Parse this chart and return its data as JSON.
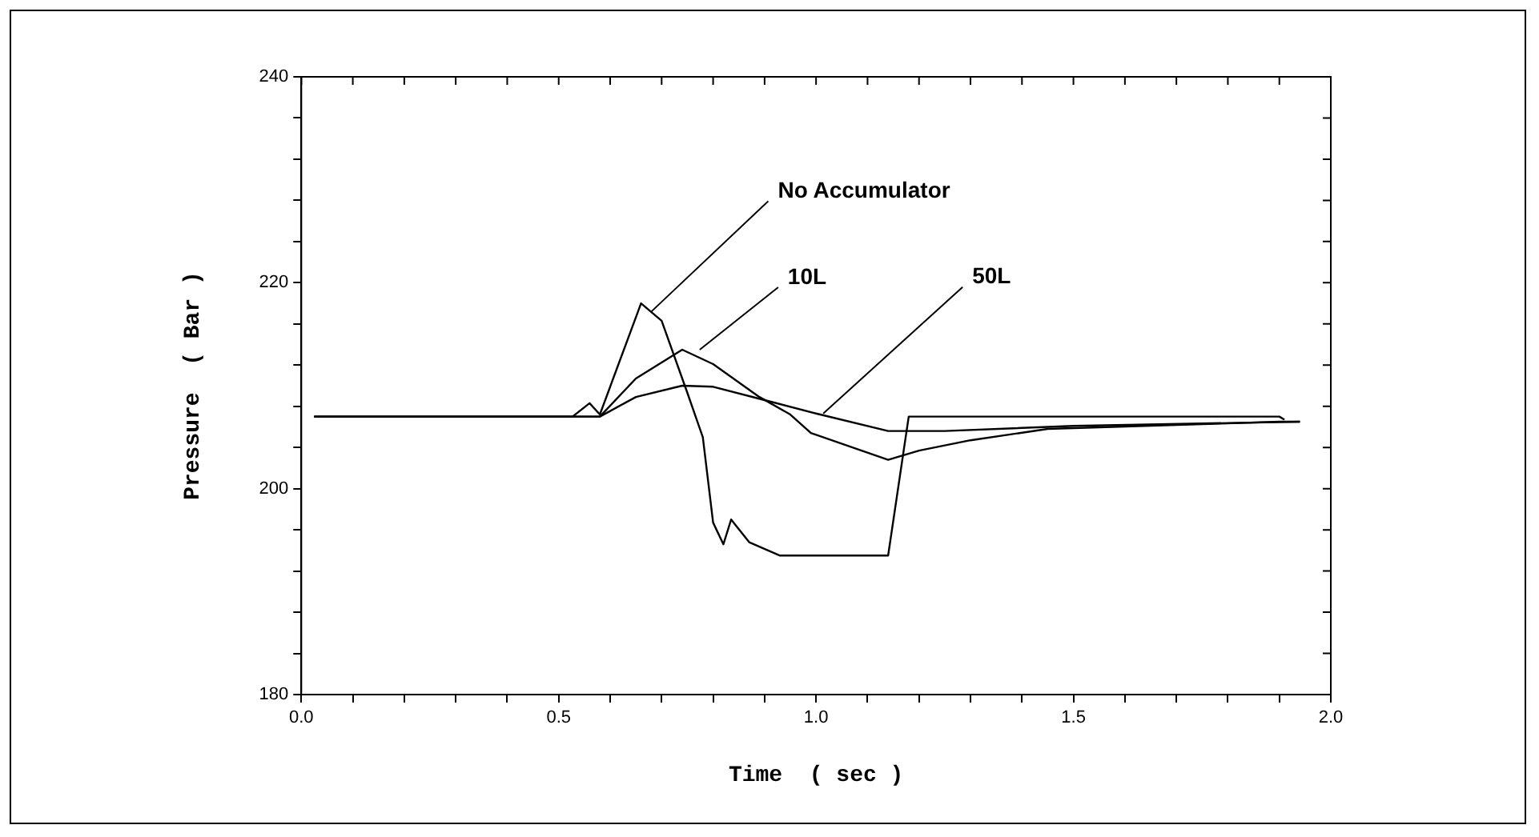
{
  "chart_data": {
    "type": "line",
    "xlabel": "Time  ( sec )",
    "ylabel": "Pressure  ( Bar )",
    "series": [
      {
        "color": "#000000",
        "x": [
          0.025,
          0.527,
          0.56,
          0.58,
          0.66,
          0.7,
          0.75,
          0.78,
          0.8,
          0.82,
          0.835,
          0.87,
          0.93,
          1.14,
          1.18,
          1.9,
          1.91
        ],
        "values": [
          207,
          207,
          208.3,
          207.2,
          218,
          216.3,
          209.3,
          205,
          196.7,
          194.6,
          197,
          194.8,
          193.5,
          193.5,
          207,
          207,
          206.7
        ]
      },
      {
        "color": "#000000",
        "x": [
          0.025,
          0.58,
          0.65,
          0.74,
          0.8,
          0.89,
          0.95,
          0.99,
          1.14,
          1.2,
          1.3,
          1.45,
          1.9,
          1.94
        ],
        "values": [
          207,
          207,
          210.7,
          213.5,
          212.1,
          208.9,
          207.2,
          205.4,
          202.8,
          203.7,
          204.7,
          205.8,
          206.5,
          206.5
        ]
      },
      {
        "color": "#000000",
        "x": [
          0.025,
          0.55,
          0.58,
          0.65,
          0.74,
          0.8,
          0.9,
          1.0,
          1.14,
          1.25,
          1.5,
          1.94
        ],
        "values": [
          207,
          207,
          207,
          208.9,
          210,
          209.9,
          208.6,
          207.3,
          205.6,
          205.6,
          206.1,
          206.5
        ]
      }
    ],
    "annotations": [
      {
        "text": "No Accumulator",
        "x": 0.68,
        "y": 217.2
      },
      {
        "text": "10L",
        "x": 0.774,
        "y": 213.5
      },
      {
        "text": "50L",
        "x": 1.014,
        "y": 207.3
      }
    ],
    "xlim": [
      0,
      2
    ],
    "ylim": [
      180,
      240
    ],
    "xticks": [
      {
        "value": 0,
        "label": "0.0"
      },
      {
        "value": 0.1,
        "label": null
      },
      {
        "value": 0.2,
        "label": null
      },
      {
        "value": 0.3,
        "label": null
      },
      {
        "value": 0.4,
        "label": null
      },
      {
        "value": 0.5,
        "label": "0.5"
      },
      {
        "value": 0.6,
        "label": null
      },
      {
        "value": 0.7,
        "label": null
      },
      {
        "value": 0.8,
        "label": null
      },
      {
        "value": 0.9,
        "label": null
      },
      {
        "value": 1,
        "label": "1.0"
      },
      {
        "value": 1.1,
        "label": null
      },
      {
        "value": 1.2,
        "label": null
      },
      {
        "value": 1.3,
        "label": null
      },
      {
        "value": 1.4,
        "label": null
      },
      {
        "value": 1.5,
        "label": "1.5"
      },
      {
        "value": 1.6,
        "label": null
      },
      {
        "value": 1.7,
        "label": null
      },
      {
        "value": 1.8,
        "label": null
      },
      {
        "value": 1.9,
        "label": null
      },
      {
        "value": 2,
        "label": "2.0"
      }
    ],
    "yticks": [
      180,
      {
        "value": 184,
        "label": null
      },
      {
        "value": 188,
        "label": null
      },
      {
        "value": 192,
        "label": null
      },
      {
        "value": 196,
        "label": null
      },
      200,
      {
        "value": 204,
        "label": null
      },
      {
        "value": 208,
        "label": null
      },
      {
        "value": 212,
        "label": null
      },
      {
        "value": 216,
        "label": null
      },
      220,
      {
        "value": 224,
        "label": null
      },
      {
        "value": 228,
        "label": null
      },
      {
        "value": 232,
        "label": null
      },
      {
        "value": 236,
        "label": null
      },
      240
    ],
    "grid": false,
    "legend": false,
    "marker": "none",
    "line_style": "solid"
  }
}
